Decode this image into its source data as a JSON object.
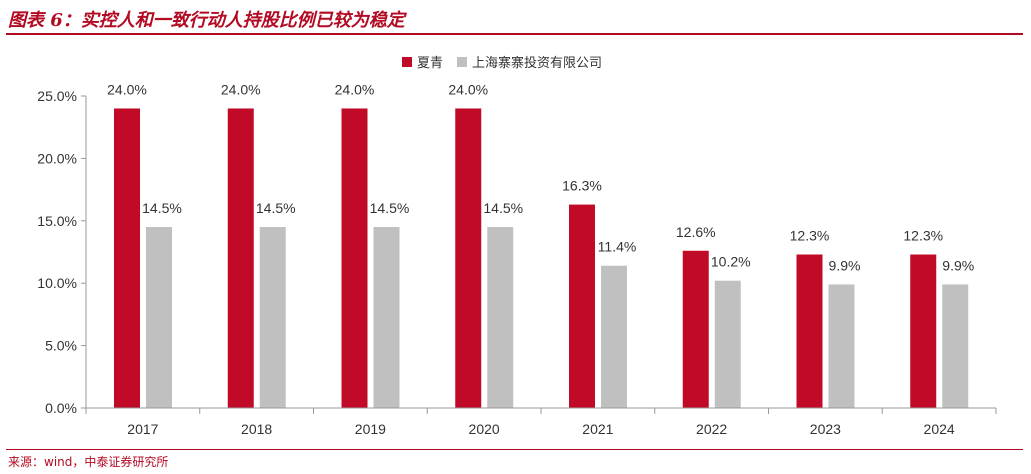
{
  "figure": {
    "title": "图表 6：实控人和一致行动人持股比例已较为稳定",
    "source": "来源：wind，中泰证券研究所"
  },
  "colors": {
    "accent": "#b30a23",
    "series_1": "#c00a27",
    "series_2": "#c0c0c0",
    "axis": "#999999",
    "text": "#333333"
  },
  "chart_data": {
    "type": "bar",
    "categories": [
      "2017",
      "2018",
      "2019",
      "2020",
      "2021",
      "2022",
      "2023",
      "2024"
    ],
    "series": [
      {
        "name": "夏青",
        "values": [
          24.0,
          24.0,
          24.0,
          24.0,
          16.3,
          12.6,
          12.3,
          12.3
        ],
        "labels": [
          "24.0%",
          "24.0%",
          "24.0%",
          "24.0%",
          "16.3%",
          "12.6%",
          "12.3%",
          "12.3%"
        ]
      },
      {
        "name": "上海寨寨投资有限公司",
        "values": [
          14.5,
          14.5,
          14.5,
          14.5,
          11.4,
          10.2,
          9.9,
          9.9
        ],
        "labels": [
          "14.5%",
          "14.5%",
          "14.5%",
          "14.5%",
          "11.4%",
          "10.2%",
          "9.9%",
          "9.9%"
        ]
      }
    ],
    "ylim": [
      0,
      25
    ],
    "yticks": [
      0,
      5,
      10,
      15,
      20,
      25
    ],
    "ytick_labels": [
      "0.0%",
      "5.0%",
      "10.0%",
      "15.0%",
      "20.0%",
      "25.0%"
    ],
    "xlabel": "",
    "ylabel": "",
    "grid": false,
    "legend_position": "top-center"
  }
}
